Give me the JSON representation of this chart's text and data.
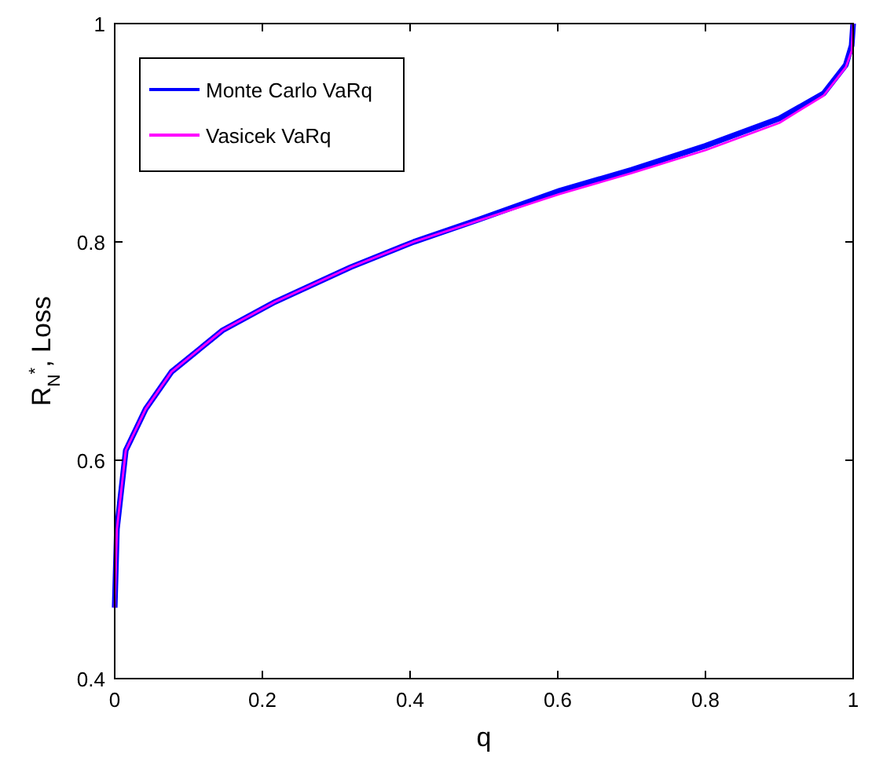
{
  "chart_data": {
    "type": "line",
    "xlabel": "q",
    "ylabel": "R$_{N}$$^{*}$, Loss",
    "xlim": [
      0,
      1
    ],
    "ylim": [
      0.4,
      1
    ],
    "xticks": [
      0,
      0.2,
      0.4,
      0.6,
      0.8,
      1
    ],
    "yticks": [
      0.4,
      0.6,
      0.8,
      1
    ],
    "legend": "top left",
    "grid": false,
    "x": [
      0,
      0.003,
      0.015,
      0.042,
      0.077,
      0.146,
      0.217,
      0.32,
      0.405,
      0.495,
      0.603,
      0.7,
      0.8,
      0.9,
      0.96,
      0.99,
      0.998,
      1
    ],
    "series": [
      {
        "name": "Monte Carlo VaRq",
        "color": "#0000ff",
        "values": [
          0.465,
          0.537,
          0.609,
          0.647,
          0.681,
          0.719,
          0.745,
          0.777,
          0.8,
          0.821,
          0.847,
          0.866,
          0.888,
          0.913,
          0.936,
          0.962,
          0.98,
          1
        ]
      },
      {
        "name": "Vasicek VaRq",
        "color": "#ff00ff",
        "values": [
          0.465,
          0.537,
          0.609,
          0.647,
          0.681,
          0.719,
          0.745,
          0.777,
          0.8,
          0.82,
          0.844,
          0.863,
          0.884,
          0.909,
          0.934,
          0.96,
          0.975,
          1
        ]
      }
    ]
  }
}
